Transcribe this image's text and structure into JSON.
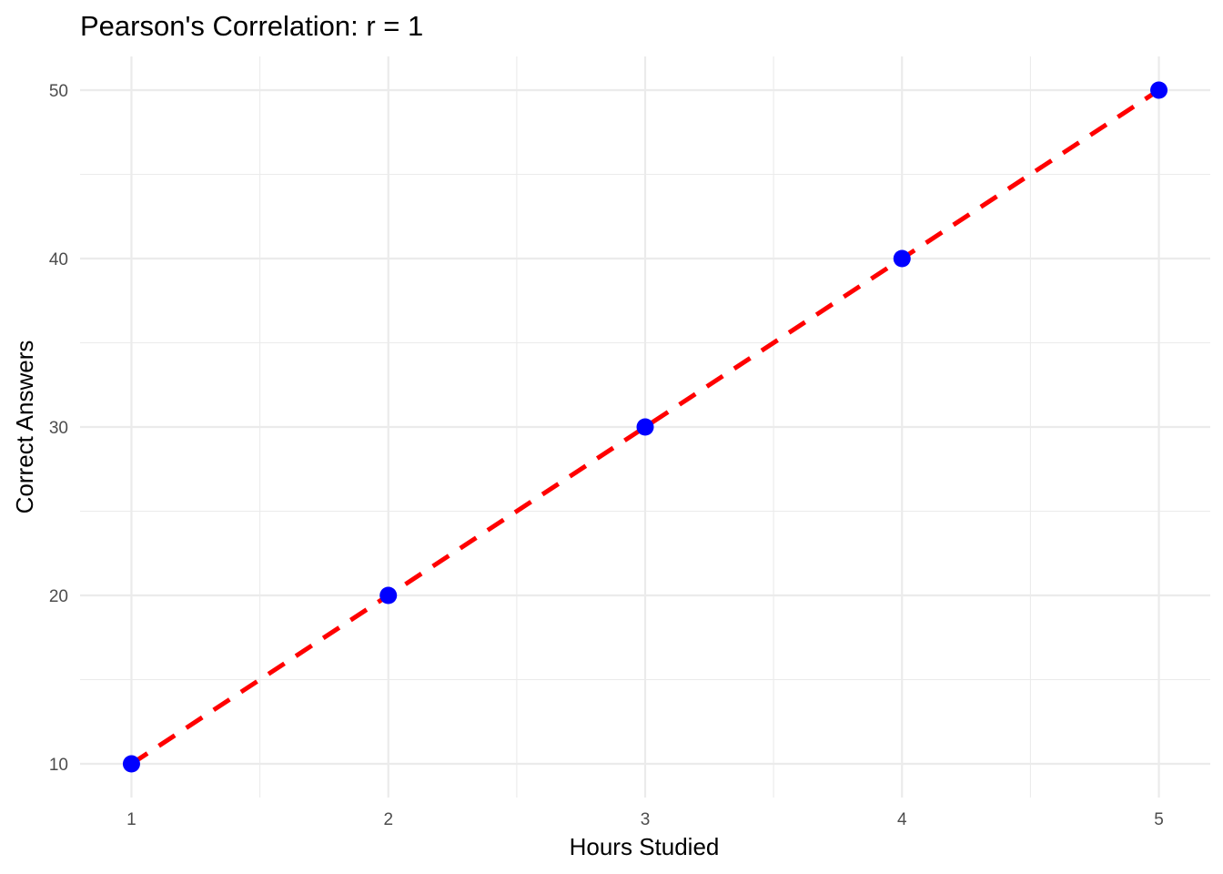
{
  "chart_data": {
    "type": "scatter",
    "title": "Pearson's Correlation: r = 1",
    "xlabel": "Hours Studied",
    "ylabel": "Correct Answers",
    "x": [
      1,
      2,
      3,
      4,
      5
    ],
    "y": [
      10,
      20,
      30,
      40,
      50
    ],
    "xlim": [
      0.8,
      5.2
    ],
    "ylim": [
      8,
      52
    ],
    "x_ticks": [
      "1",
      "2",
      "3",
      "4",
      "5"
    ],
    "y_ticks": [
      "10",
      "20",
      "30",
      "40",
      "50"
    ],
    "x_tick_values": [
      1,
      2,
      3,
      4,
      5
    ],
    "y_tick_values": [
      10,
      20,
      30,
      40,
      50
    ],
    "x_minor": [
      1.5,
      2.5,
      3.5,
      4.5
    ],
    "y_minor": [
      15,
      25,
      35,
      45
    ],
    "grid": true,
    "legend": "none",
    "trend_line": {
      "style": "dashed",
      "from": [
        1,
        10
      ],
      "to": [
        5,
        50
      ]
    },
    "colors": {
      "points": "#0000ff",
      "trend_line": "#ff0000",
      "grid": "#ebebeb"
    }
  }
}
